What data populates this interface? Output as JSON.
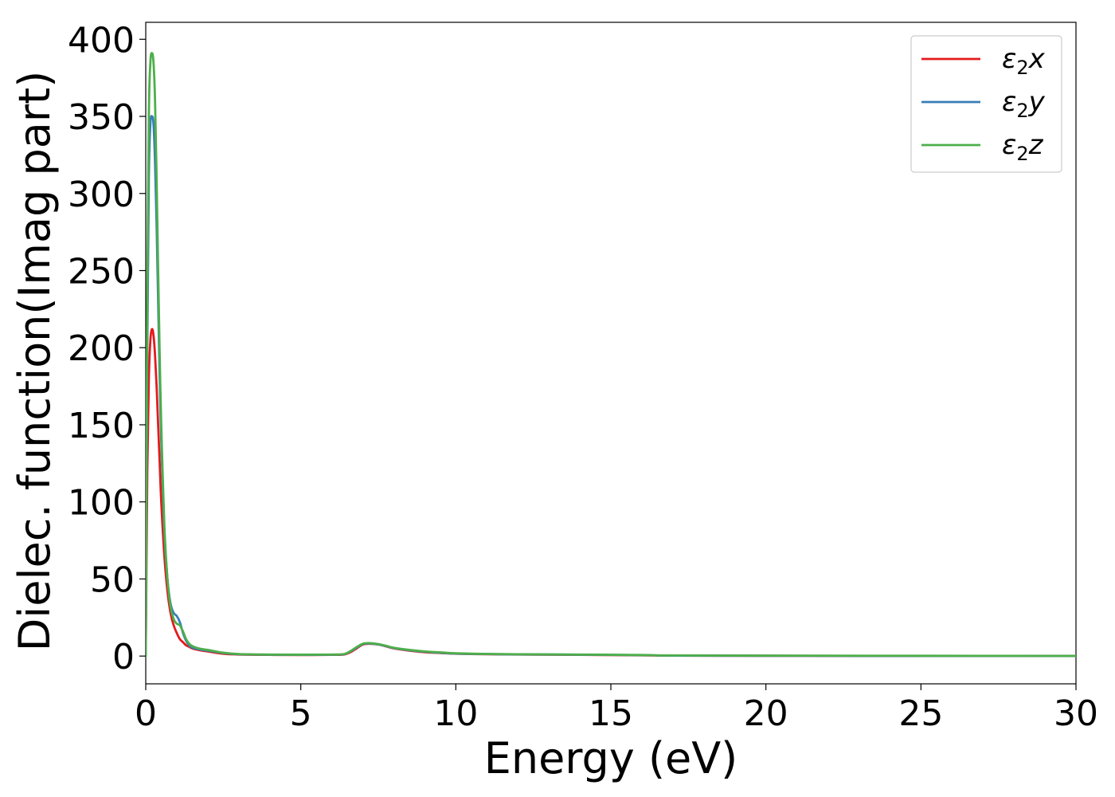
{
  "chart_data": {
    "type": "line",
    "xlabel": "Energy (eV)",
    "ylabel": "Dielec. function(Imag part)",
    "xlim": [
      0,
      30
    ],
    "ylim": [
      -18,
      411
    ],
    "xticks": [
      0,
      5,
      10,
      15,
      20,
      25,
      30
    ],
    "yticks": [
      0,
      50,
      100,
      150,
      200,
      250,
      300,
      350,
      400
    ],
    "grid": false,
    "legend_position": "top-right",
    "series": [
      {
        "name": "ε2x",
        "symbol": "ε",
        "subscript": "2",
        "suffix": "x",
        "color": "#e41a1c",
        "x": [
          0,
          0.05,
          0.1,
          0.15,
          0.2,
          0.25,
          0.3,
          0.35,
          0.4,
          0.45,
          0.5,
          0.6,
          0.7,
          0.8,
          0.9,
          1.0,
          1.1,
          1.2,
          1.3,
          1.4,
          1.5,
          1.7,
          2.0,
          2.5,
          3.0,
          4.0,
          5.0,
          6.0,
          6.4,
          6.6,
          6.8,
          7.0,
          7.2,
          7.5,
          7.8,
          8.0,
          8.5,
          9.0,
          9.5,
          10,
          11,
          12,
          14,
          16,
          17,
          20,
          25,
          30
        ],
        "y": [
          0,
          120,
          180,
          205,
          212,
          208,
          195,
          175,
          150,
          125,
          100,
          65,
          42,
          28,
          20,
          15,
          11,
          9,
          7,
          6,
          5,
          4,
          3,
          1.5,
          1,
          0.8,
          0.7,
          0.8,
          1,
          2.5,
          5,
          7.5,
          8,
          7.5,
          6,
          5,
          3.5,
          2.5,
          2,
          1.5,
          1.2,
          1,
          0.8,
          0.5,
          0.3,
          0.2,
          0.1,
          0.1
        ]
      },
      {
        "name": "ε2y",
        "symbol": "ε",
        "subscript": "2",
        "suffix": "y",
        "color": "#377eb8",
        "x": [
          0,
          0.05,
          0.1,
          0.15,
          0.2,
          0.25,
          0.3,
          0.35,
          0.4,
          0.45,
          0.5,
          0.6,
          0.7,
          0.8,
          0.9,
          1.0,
          1.1,
          1.2,
          1.3,
          1.4,
          1.5,
          1.7,
          2.0,
          2.5,
          3.0,
          4.0,
          5.0,
          6.0,
          6.4,
          6.6,
          6.8,
          7.0,
          7.2,
          7.5,
          7.8,
          8.0,
          8.5,
          9.0,
          9.5,
          10,
          11,
          12,
          14,
          16,
          17,
          20,
          25,
          30
        ],
        "y": [
          0,
          200,
          310,
          345,
          350,
          345,
          320,
          280,
          230,
          180,
          140,
          80,
          50,
          34,
          28,
          26,
          22,
          15,
          10,
          7,
          5.5,
          4.5,
          3.5,
          2,
          1.2,
          0.9,
          0.8,
          0.9,
          1.2,
          3,
          5.5,
          7.8,
          8.2,
          7.6,
          6.2,
          5.2,
          3.8,
          2.8,
          2.2,
          1.6,
          1.3,
          1.1,
          0.9,
          0.6,
          0.3,
          0.2,
          0.1,
          0.1
        ]
      },
      {
        "name": "ε2z",
        "symbol": "ε",
        "subscript": "2",
        "suffix": "z",
        "color": "#4daf4a",
        "x": [
          0,
          0.05,
          0.1,
          0.15,
          0.2,
          0.25,
          0.3,
          0.35,
          0.4,
          0.45,
          0.5,
          0.6,
          0.7,
          0.8,
          0.9,
          1.0,
          1.1,
          1.2,
          1.3,
          1.4,
          1.5,
          1.7,
          2.0,
          2.5,
          3.0,
          4.0,
          5.0,
          6.0,
          6.4,
          6.6,
          6.8,
          7.0,
          7.2,
          7.5,
          7.8,
          8.0,
          8.5,
          9.0,
          9.5,
          10,
          11,
          12,
          14,
          16,
          17,
          20,
          25,
          30
        ],
        "y": [
          0,
          230,
          350,
          385,
          391,
          385,
          360,
          310,
          250,
          195,
          150,
          85,
          50,
          32,
          24,
          21,
          20,
          16,
          11,
          8,
          6.5,
          5,
          4,
          2.2,
          1.3,
          1,
          0.9,
          1,
          1.3,
          3.2,
          5.8,
          8,
          8.4,
          7.8,
          6.4,
          5.4,
          4,
          3,
          2.4,
          1.8,
          1.4,
          1.2,
          1,
          0.7,
          0.4,
          0.3,
          0.2,
          0.1
        ]
      }
    ]
  }
}
